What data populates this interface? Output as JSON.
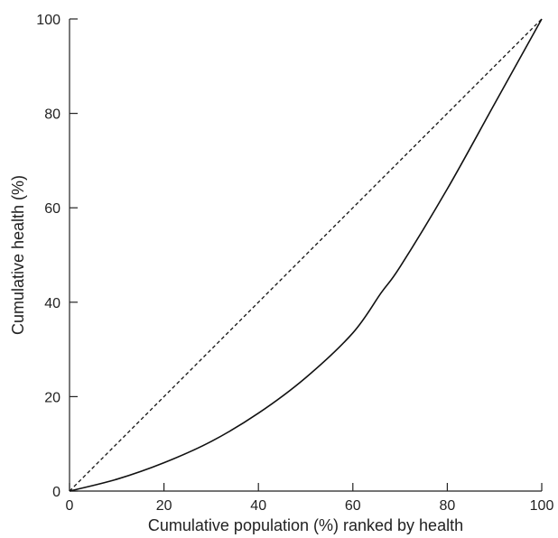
{
  "chart_data": {
    "type": "line",
    "title": "",
    "xlabel": "Cumulative population (%) ranked by health",
    "ylabel": "Cumulative health (%)",
    "xlim": [
      0,
      100
    ],
    "ylim": [
      0,
      100
    ],
    "xticks": [
      0,
      20,
      40,
      60,
      80,
      100
    ],
    "yticks": [
      0,
      20,
      40,
      60,
      80,
      100
    ],
    "grid": false,
    "legend": "none",
    "series": [
      {
        "style": "solid",
        "color": "#111111",
        "x": [
          0,
          10,
          20,
          30,
          40,
          50,
          60,
          66,
          70,
          80,
          90,
          100
        ],
        "y": [
          0,
          2.5,
          6,
          10.5,
          16.5,
          24,
          33.5,
          42,
          47.5,
          64,
          82,
          100
        ]
      },
      {
        "style": "dashed",
        "color": "#111111",
        "x": [
          0,
          100
        ],
        "y": [
          0,
          100
        ]
      }
    ]
  }
}
